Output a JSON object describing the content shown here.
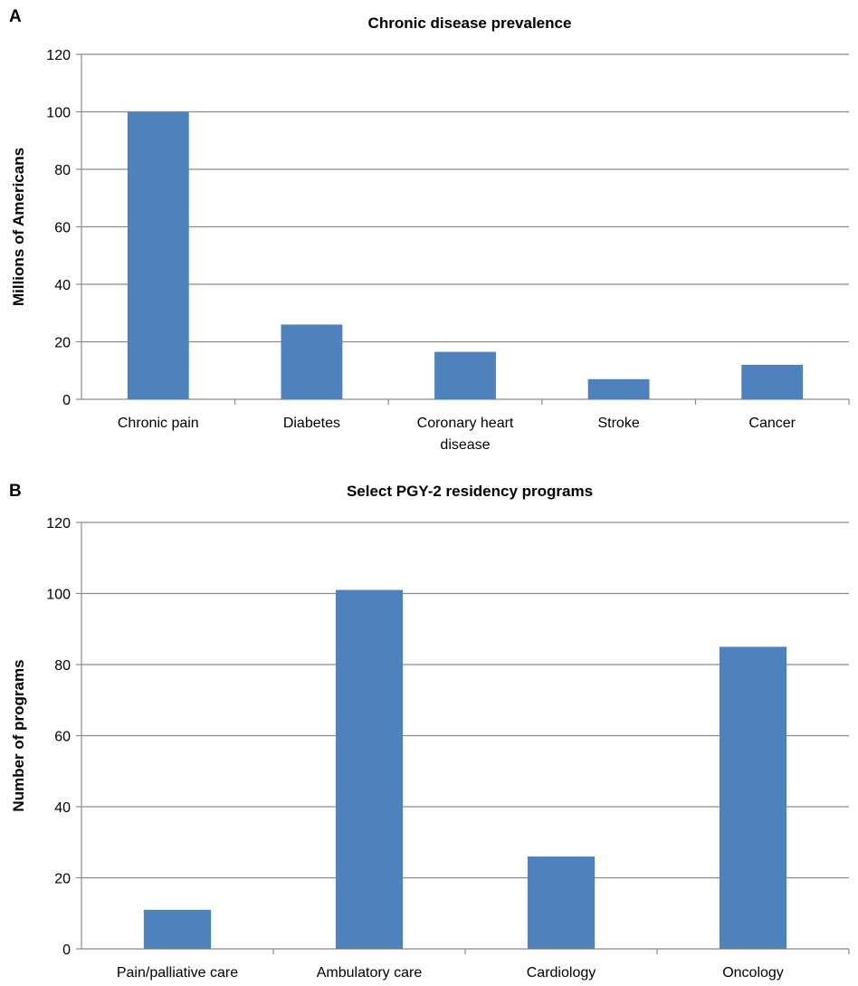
{
  "chart_data": [
    {
      "type": "bar",
      "panel": "A",
      "title": "Chronic disease prevalence",
      "xlabel": "",
      "ylabel": "Millions of Americans",
      "ylim": [
        0,
        120
      ],
      "yticks": [
        0,
        20,
        40,
        60,
        80,
        100,
        120
      ],
      "categories": [
        "Chronic pain",
        "Diabetes",
        "Coronary heart disease",
        "Stroke",
        "Cancer"
      ],
      "category_lines": [
        [
          "Chronic pain"
        ],
        [
          "Diabetes"
        ],
        [
          "Coronary heart",
          "disease"
        ],
        [
          "Stroke"
        ],
        [
          "Cancer"
        ]
      ],
      "values": [
        100,
        26,
        16.5,
        7,
        12
      ],
      "grid": true,
      "bar_color": "#4F81BD"
    },
    {
      "type": "bar",
      "panel": "B",
      "title": "Select PGY-2 residency programs",
      "xlabel": "",
      "ylabel": "Number of programs",
      "ylim": [
        0,
        120
      ],
      "yticks": [
        0,
        20,
        40,
        60,
        80,
        100,
        120
      ],
      "categories": [
        "Pain/palliative care",
        "Ambulatory care",
        "Cardiology",
        "Oncology"
      ],
      "category_lines": [
        [
          "Pain/palliative care"
        ],
        [
          "Ambulatory care"
        ],
        [
          "Cardiology"
        ],
        [
          "Oncology"
        ]
      ],
      "values": [
        11,
        101,
        26,
        85
      ],
      "grid": true,
      "bar_color": "#4F81BD"
    }
  ]
}
